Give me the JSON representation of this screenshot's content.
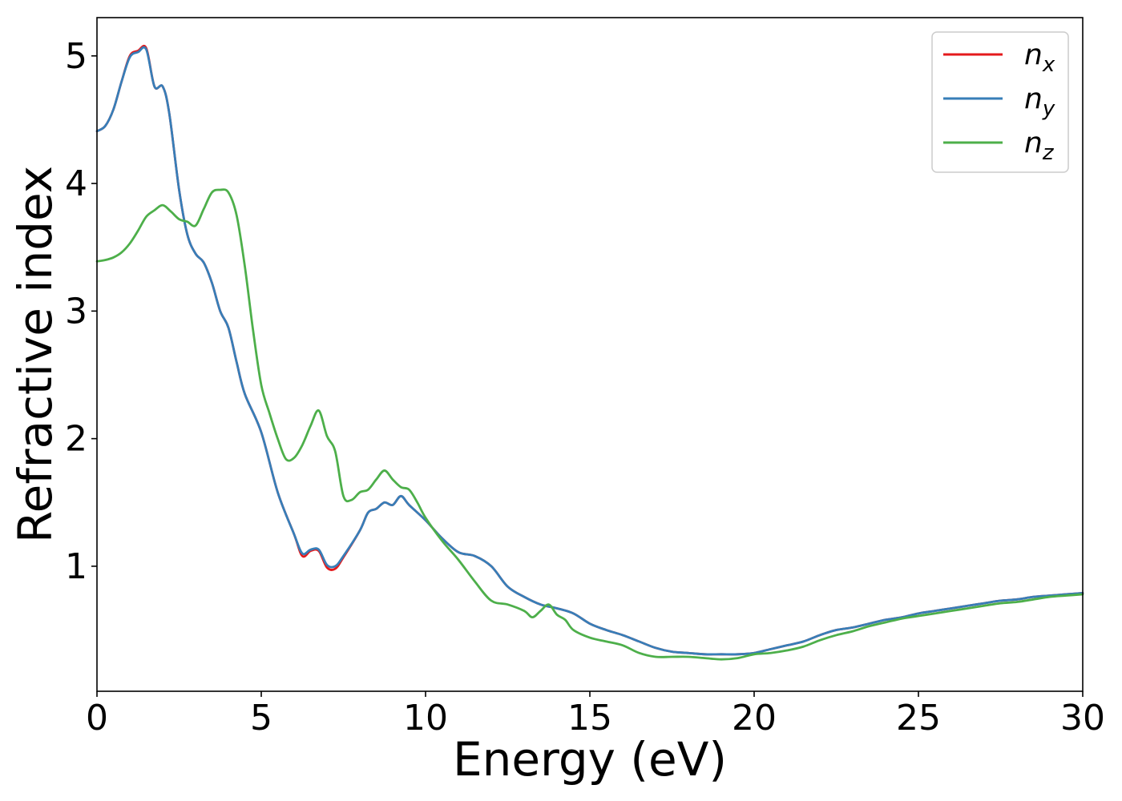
{
  "chart_data": {
    "type": "line",
    "title": "",
    "xlabel": "Energy (eV)",
    "ylabel": "Refractive index",
    "xlim": [
      0,
      30
    ],
    "ylim": [
      0.02,
      5.3
    ],
    "xticks": [
      0,
      5,
      10,
      15,
      20,
      25,
      30
    ],
    "xtick_labels": [
      "0",
      "5",
      "10",
      "15",
      "20",
      "25",
      "30"
    ],
    "yticks": [
      1,
      2,
      3,
      4,
      5
    ],
    "ytick_labels": [
      "1",
      "2",
      "3",
      "4",
      "5"
    ],
    "grid": false,
    "legend_position": "top-right",
    "series": [
      {
        "name": "n_x",
        "legend_base": "n",
        "legend_sub": "x",
        "color": "#e41a1c",
        "x": [
          0,
          0.25,
          0.5,
          0.75,
          1.0,
          1.25,
          1.5,
          1.75,
          2.0,
          2.2,
          2.5,
          2.75,
          3.0,
          3.25,
          3.5,
          3.75,
          4.0,
          4.25,
          4.5,
          5.0,
          5.5,
          6.0,
          6.25,
          6.5,
          6.75,
          7.0,
          7.25,
          7.5,
          8.0,
          8.25,
          8.5,
          8.75,
          9.0,
          9.25,
          9.5,
          10.0,
          10.5,
          11.0,
          11.5,
          12.0,
          12.5,
          13.0,
          13.5,
          14.0,
          14.5,
          15.0,
          15.5,
          16.0,
          16.5,
          17.0,
          17.5,
          18.0,
          18.5,
          19.0,
          19.5,
          20.0,
          20.5,
          21.0,
          21.5,
          22.0,
          22.5,
          23.0,
          23.5,
          24.0,
          24.5,
          25.0,
          25.5,
          26.0,
          26.5,
          27.0,
          27.5,
          28.0,
          28.5,
          29.0,
          29.5,
          30.0
        ],
        "y": [
          4.41,
          4.45,
          4.58,
          4.8,
          5.0,
          5.04,
          5.06,
          4.76,
          4.76,
          4.55,
          3.95,
          3.6,
          3.45,
          3.38,
          3.22,
          3.0,
          2.87,
          2.6,
          2.35,
          2.05,
          1.58,
          1.25,
          1.08,
          1.12,
          1.12,
          0.99,
          0.98,
          1.07,
          1.28,
          1.42,
          1.45,
          1.5,
          1.48,
          1.55,
          1.48,
          1.36,
          1.22,
          1.11,
          1.08,
          1.0,
          0.84,
          0.76,
          0.7,
          0.67,
          0.63,
          0.55,
          0.5,
          0.46,
          0.41,
          0.36,
          0.33,
          0.32,
          0.31,
          0.31,
          0.31,
          0.32,
          0.35,
          0.38,
          0.41,
          0.46,
          0.5,
          0.52,
          0.55,
          0.58,
          0.6,
          0.63,
          0.65,
          0.67,
          0.69,
          0.71,
          0.73,
          0.74,
          0.76,
          0.77,
          0.78,
          0.79
        ]
      },
      {
        "name": "n_y",
        "legend_base": "n",
        "legend_sub": "y",
        "color": "#377eb8",
        "x": [
          0,
          0.25,
          0.5,
          0.75,
          1.0,
          1.25,
          1.5,
          1.75,
          2.0,
          2.2,
          2.5,
          2.75,
          3.0,
          3.25,
          3.5,
          3.75,
          4.0,
          4.25,
          4.5,
          5.0,
          5.5,
          6.0,
          6.25,
          6.5,
          6.75,
          7.0,
          7.25,
          7.5,
          8.0,
          8.25,
          8.5,
          8.75,
          9.0,
          9.25,
          9.5,
          10.0,
          10.5,
          11.0,
          11.5,
          12.0,
          12.5,
          13.0,
          13.5,
          14.0,
          14.5,
          15.0,
          15.5,
          16.0,
          16.5,
          17.0,
          17.5,
          18.0,
          18.5,
          19.0,
          19.5,
          20.0,
          20.5,
          21.0,
          21.5,
          22.0,
          22.5,
          23.0,
          23.5,
          24.0,
          24.5,
          25.0,
          25.5,
          26.0,
          26.5,
          27.0,
          27.5,
          28.0,
          28.5,
          29.0,
          29.5,
          30.0
        ],
        "y": [
          4.41,
          4.45,
          4.58,
          4.8,
          4.99,
          5.03,
          5.05,
          4.76,
          4.76,
          4.55,
          3.95,
          3.6,
          3.45,
          3.38,
          3.22,
          3.0,
          2.87,
          2.6,
          2.35,
          2.05,
          1.58,
          1.25,
          1.1,
          1.13,
          1.13,
          1.01,
          1.0,
          1.08,
          1.28,
          1.42,
          1.45,
          1.5,
          1.48,
          1.55,
          1.48,
          1.36,
          1.22,
          1.11,
          1.08,
          1.0,
          0.84,
          0.76,
          0.7,
          0.67,
          0.63,
          0.55,
          0.5,
          0.46,
          0.41,
          0.36,
          0.33,
          0.32,
          0.31,
          0.31,
          0.31,
          0.32,
          0.35,
          0.38,
          0.41,
          0.46,
          0.5,
          0.52,
          0.55,
          0.58,
          0.6,
          0.63,
          0.65,
          0.67,
          0.69,
          0.71,
          0.73,
          0.74,
          0.76,
          0.77,
          0.78,
          0.79
        ]
      },
      {
        "name": "n_z",
        "legend_base": "n",
        "legend_sub": "z",
        "color": "#4daf4a",
        "x": [
          0,
          0.25,
          0.5,
          0.75,
          1.0,
          1.25,
          1.5,
          1.75,
          2.0,
          2.25,
          2.5,
          2.75,
          3.0,
          3.25,
          3.5,
          3.75,
          4.0,
          4.25,
          4.5,
          4.75,
          5.0,
          5.25,
          5.5,
          5.75,
          6.0,
          6.25,
          6.5,
          6.75,
          7.0,
          7.25,
          7.5,
          7.75,
          8.0,
          8.25,
          8.5,
          8.75,
          9.0,
          9.25,
          9.5,
          9.75,
          10.0,
          10.5,
          11.0,
          11.5,
          12.0,
          12.5,
          13.0,
          13.25,
          13.5,
          13.75,
          14.0,
          14.25,
          14.5,
          15.0,
          15.5,
          16.0,
          16.5,
          17.0,
          17.5,
          18.0,
          18.5,
          19.0,
          19.5,
          20.0,
          20.5,
          21.0,
          21.5,
          22.0,
          22.5,
          23.0,
          23.5,
          24.0,
          24.5,
          25.0,
          25.5,
          26.0,
          26.5,
          27.0,
          27.5,
          28.0,
          28.5,
          29.0,
          29.5,
          30.0
        ],
        "y": [
          3.39,
          3.4,
          3.42,
          3.46,
          3.53,
          3.63,
          3.74,
          3.79,
          3.83,
          3.78,
          3.72,
          3.7,
          3.67,
          3.8,
          3.93,
          3.95,
          3.93,
          3.75,
          3.35,
          2.85,
          2.42,
          2.2,
          2.0,
          1.84,
          1.85,
          1.95,
          2.1,
          2.22,
          2.02,
          1.9,
          1.55,
          1.52,
          1.58,
          1.6,
          1.68,
          1.75,
          1.68,
          1.62,
          1.6,
          1.5,
          1.38,
          1.2,
          1.05,
          0.88,
          0.73,
          0.7,
          0.65,
          0.6,
          0.65,
          0.7,
          0.62,
          0.58,
          0.5,
          0.44,
          0.41,
          0.38,
          0.32,
          0.29,
          0.29,
          0.29,
          0.28,
          0.27,
          0.28,
          0.31,
          0.32,
          0.34,
          0.37,
          0.42,
          0.46,
          0.49,
          0.53,
          0.56,
          0.59,
          0.61,
          0.63,
          0.65,
          0.67,
          0.69,
          0.71,
          0.72,
          0.74,
          0.76,
          0.77,
          0.78
        ]
      }
    ]
  }
}
